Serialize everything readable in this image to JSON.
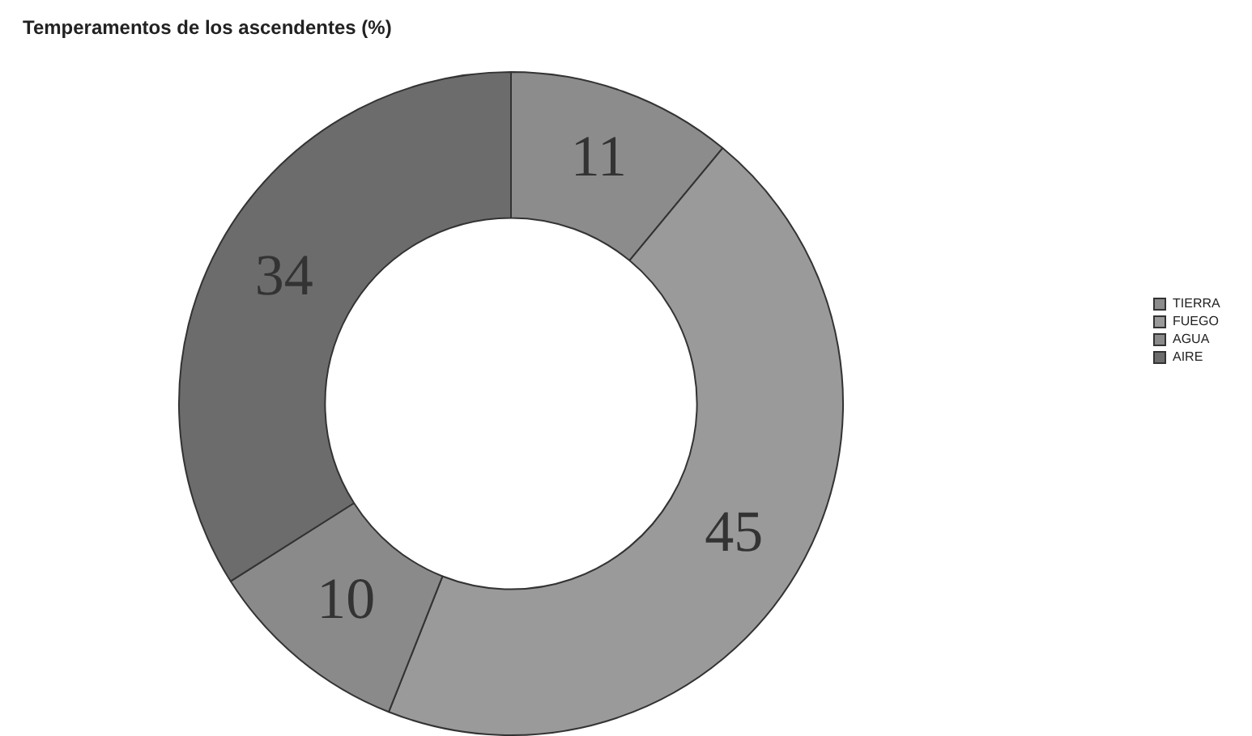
{
  "chart_data": {
    "type": "donut",
    "title": "Temperamentos de los ascendentes (%)",
    "categories": [
      "TIERRA",
      "FUEGO",
      "AGUA",
      "AIRE"
    ],
    "values": [
      11,
      45,
      10,
      34
    ],
    "colors": [
      "#8c8c8c",
      "#9a9a9a",
      "#8a8a8a",
      "#6c6c6c"
    ],
    "data_labels": true,
    "legend": "right"
  }
}
